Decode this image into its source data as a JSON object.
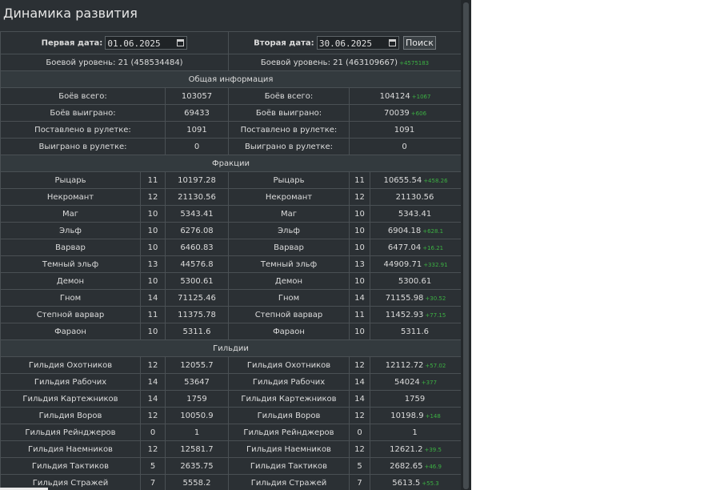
{
  "title": "Динамика развития",
  "filter": {
    "first_label": "Первая дата:",
    "first_value": "01.06.2025",
    "second_label": "Вторая дата:",
    "second_value": "30.06.2025",
    "search_label": "Поиск"
  },
  "level": {
    "left": "Боевой уровень: 21 (458534484)",
    "right": "Боевой уровень: 21 (463109667)",
    "right_delta": "+4575183"
  },
  "sections": {
    "general": "Общая информация",
    "factions": "Фракции",
    "guilds": "Гильдии"
  },
  "general_rows": [
    {
      "label": "Боёв всего:",
      "v1": "103057",
      "v2": "104124",
      "d": "+1067"
    },
    {
      "label": "Боёв выиграно:",
      "v1": "69433",
      "v2": "70039",
      "d": "+606"
    },
    {
      "label": "Поставлено в рулетке:",
      "v1": "1091",
      "v2": "1091",
      "d": ""
    },
    {
      "label": "Выиграно в рулетке:",
      "v1": "0",
      "v2": "0",
      "d": ""
    }
  ],
  "factions": [
    {
      "name": "Рыцарь",
      "l1": "11",
      "v1": "10197.28",
      "l2": "11",
      "v2": "10655.54",
      "d": "+458.26"
    },
    {
      "name": "Некромант",
      "l1": "12",
      "v1": "21130.56",
      "l2": "12",
      "v2": "21130.56",
      "d": ""
    },
    {
      "name": "Маг",
      "l1": "10",
      "v1": "5343.41",
      "l2": "10",
      "v2": "5343.41",
      "d": ""
    },
    {
      "name": "Эльф",
      "l1": "10",
      "v1": "6276.08",
      "l2": "10",
      "v2": "6904.18",
      "d": "+628.1"
    },
    {
      "name": "Варвар",
      "l1": "10",
      "v1": "6460.83",
      "l2": "10",
      "v2": "6477.04",
      "d": "+16.21"
    },
    {
      "name": "Темный эльф",
      "l1": "13",
      "v1": "44576.8",
      "l2": "13",
      "v2": "44909.71",
      "d": "+332.91"
    },
    {
      "name": "Демон",
      "l1": "10",
      "v1": "5300.61",
      "l2": "10",
      "v2": "5300.61",
      "d": ""
    },
    {
      "name": "Гном",
      "l1": "14",
      "v1": "71125.46",
      "l2": "14",
      "v2": "71155.98",
      "d": "+30.52"
    },
    {
      "name": "Степной варвар",
      "l1": "11",
      "v1": "11375.78",
      "l2": "11",
      "v2": "11452.93",
      "d": "+77.15"
    },
    {
      "name": "Фараон",
      "l1": "10",
      "v1": "5311.6",
      "l2": "10",
      "v2": "5311.6",
      "d": ""
    }
  ],
  "guilds": [
    {
      "name": "Гильдия Охотников",
      "l1": "12",
      "v1": "12055.7",
      "l2": "12",
      "v2": "12112.72",
      "d": "+57.02"
    },
    {
      "name": "Гильдия Рабочих",
      "l1": "14",
      "v1": "53647",
      "l2": "14",
      "v2": "54024",
      "d": "+377"
    },
    {
      "name": "Гильдия Картежников",
      "l1": "14",
      "v1": "1759",
      "l2": "14",
      "v2": "1759",
      "d": ""
    },
    {
      "name": "Гильдия Воров",
      "l1": "12",
      "v1": "10050.9",
      "l2": "12",
      "v2": "10198.9",
      "d": "+148"
    },
    {
      "name": "Гильдия Рейнджеров",
      "l1": "0",
      "v1": "1",
      "l2": "0",
      "v2": "1",
      "d": ""
    },
    {
      "name": "Гильдия Наемников",
      "l1": "12",
      "v1": "12581.7",
      "l2": "12",
      "v2": "12621.2",
      "d": "+39.5"
    },
    {
      "name": "Гильдия Тактиков",
      "l1": "5",
      "v1": "2635.75",
      "l2": "5",
      "v2": "2682.65",
      "d": "+46.9"
    },
    {
      "name": "Гильдия Стражей",
      "l1": "7",
      "v1": "5558.2",
      "l2": "7",
      "v2": "5613.5",
      "d": "+55.3"
    }
  ],
  "colors": {
    "background": "#2b3034",
    "border": "#4a5054",
    "delta": "#3cb043",
    "text": "#dcdcdc"
  }
}
